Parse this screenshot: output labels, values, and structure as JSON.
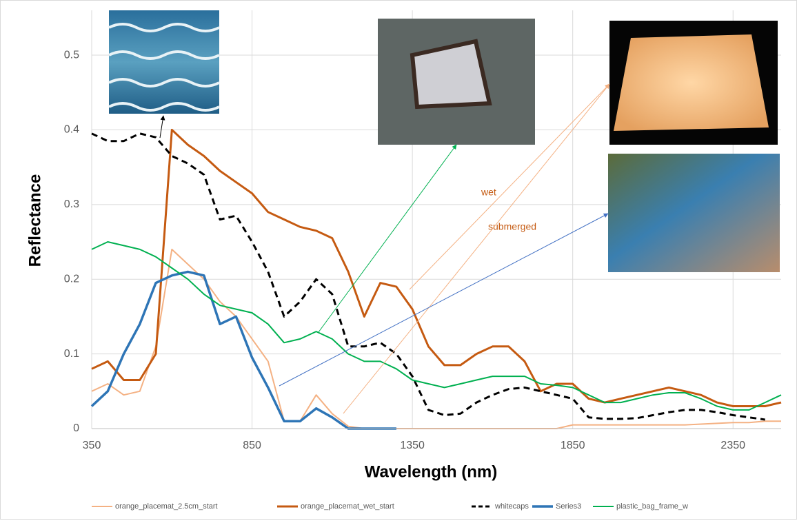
{
  "chart_data": {
    "type": "line",
    "xlabel": "Wavelength (nm)",
    "ylabel": "Reflectance",
    "x": [
      350,
      400,
      450,
      500,
      550,
      600,
      650,
      700,
      750,
      800,
      850,
      900,
      950,
      1000,
      1050,
      1100,
      1150,
      1200,
      1250,
      1300,
      1350,
      1400,
      1450,
      1500,
      1550,
      1600,
      1650,
      1700,
      1750,
      1800,
      1850,
      1900,
      1950,
      2000,
      2050,
      2100,
      2150,
      2200,
      2250,
      2300,
      2350,
      2400,
      2450,
      2500
    ],
    "xlim": [
      350,
      2500
    ],
    "xticks": [
      350,
      850,
      1350,
      1850,
      2350
    ],
    "ylim": [
      0,
      0.56
    ],
    "yticks": [
      0,
      0.1,
      0.2,
      0.3,
      0.4,
      0.5
    ],
    "grid": true,
    "legend": "bottom",
    "annotations": [
      "wet",
      "submerged"
    ],
    "series": [
      {
        "name": "orange_placemat_2.5cm_start",
        "color": "#f4b183",
        "values": [
          0.05,
          0.06,
          0.045,
          0.05,
          0.11,
          0.24,
          0.22,
          0.2,
          0.17,
          0.15,
          0.12,
          0.09,
          0.01,
          0.01,
          0.045,
          0.02,
          0.003,
          0,
          0,
          0,
          0,
          0,
          0,
          0,
          0,
          0,
          0,
          0,
          0,
          0,
          0.005,
          0.005,
          0.005,
          0.005,
          0.005,
          0.005,
          0.005,
          0.005,
          0.006,
          0.007,
          0.008,
          0.008,
          0.01,
          0.01
        ]
      },
      {
        "name": "orange_placemat_wet_start",
        "color": "#c55a11",
        "values": [
          0.08,
          0.09,
          0.065,
          0.065,
          0.1,
          0.4,
          0.38,
          0.365,
          0.345,
          0.33,
          0.315,
          0.29,
          0.28,
          0.27,
          0.265,
          0.255,
          0.21,
          0.15,
          0.195,
          0.19,
          0.16,
          0.11,
          0.085,
          0.085,
          0.1,
          0.11,
          0.11,
          0.09,
          0.05,
          0.06,
          0.06,
          0.04,
          0.035,
          0.04,
          0.045,
          0.05,
          0.055,
          0.05,
          0.045,
          0.035,
          0.03,
          0.03,
          0.03,
          0.035
        ]
      },
      {
        "name": "whitecaps",
        "color": "#000000",
        "style": "dashed",
        "values": [
          0.395,
          0.385,
          0.385,
          0.395,
          0.39,
          0.365,
          0.355,
          0.34,
          0.28,
          0.285,
          0.25,
          0.21,
          0.15,
          0.17,
          0.2,
          0.18,
          0.11,
          0.11,
          0.115,
          0.1,
          0.07,
          0.025,
          0.018,
          0.02,
          0.035,
          0.045,
          0.053,
          0.055,
          0.05,
          0.045,
          0.04,
          0.015,
          0.013,
          0.013,
          0.014,
          0.018,
          0.022,
          0.025,
          0.025,
          0.022,
          0.018,
          0.015,
          0.012,
          null
        ]
      },
      {
        "name": "Series3",
        "color": "#2e75b6",
        "values": [
          0.03,
          0.05,
          0.1,
          0.14,
          0.195,
          0.205,
          0.21,
          0.205,
          0.14,
          0.15,
          0.095,
          0.055,
          0.01,
          0.01,
          0.027,
          0.015,
          0,
          0,
          0,
          0,
          null,
          null,
          null,
          null,
          null,
          null,
          null,
          null,
          null,
          null,
          null,
          null,
          null,
          null,
          null,
          null,
          null,
          null,
          null,
          null,
          null,
          null,
          null,
          null
        ]
      },
      {
        "name": "plastic_bag_frame_w",
        "color": "#00b050",
        "values": [
          0.24,
          0.25,
          0.245,
          0.24,
          0.23,
          0.215,
          0.2,
          0.18,
          0.165,
          0.16,
          0.155,
          0.14,
          0.115,
          0.12,
          0.13,
          0.12,
          0.1,
          0.09,
          0.09,
          0.08,
          0.065,
          0.06,
          0.055,
          0.06,
          0.065,
          0.07,
          0.07,
          0.07,
          0.06,
          0.058,
          0.055,
          0.045,
          0.035,
          0.035,
          0.04,
          0.045,
          0.048,
          0.048,
          0.04,
          0.03,
          0.025,
          0.025,
          0.035,
          0.045
        ]
      }
    ]
  }
}
